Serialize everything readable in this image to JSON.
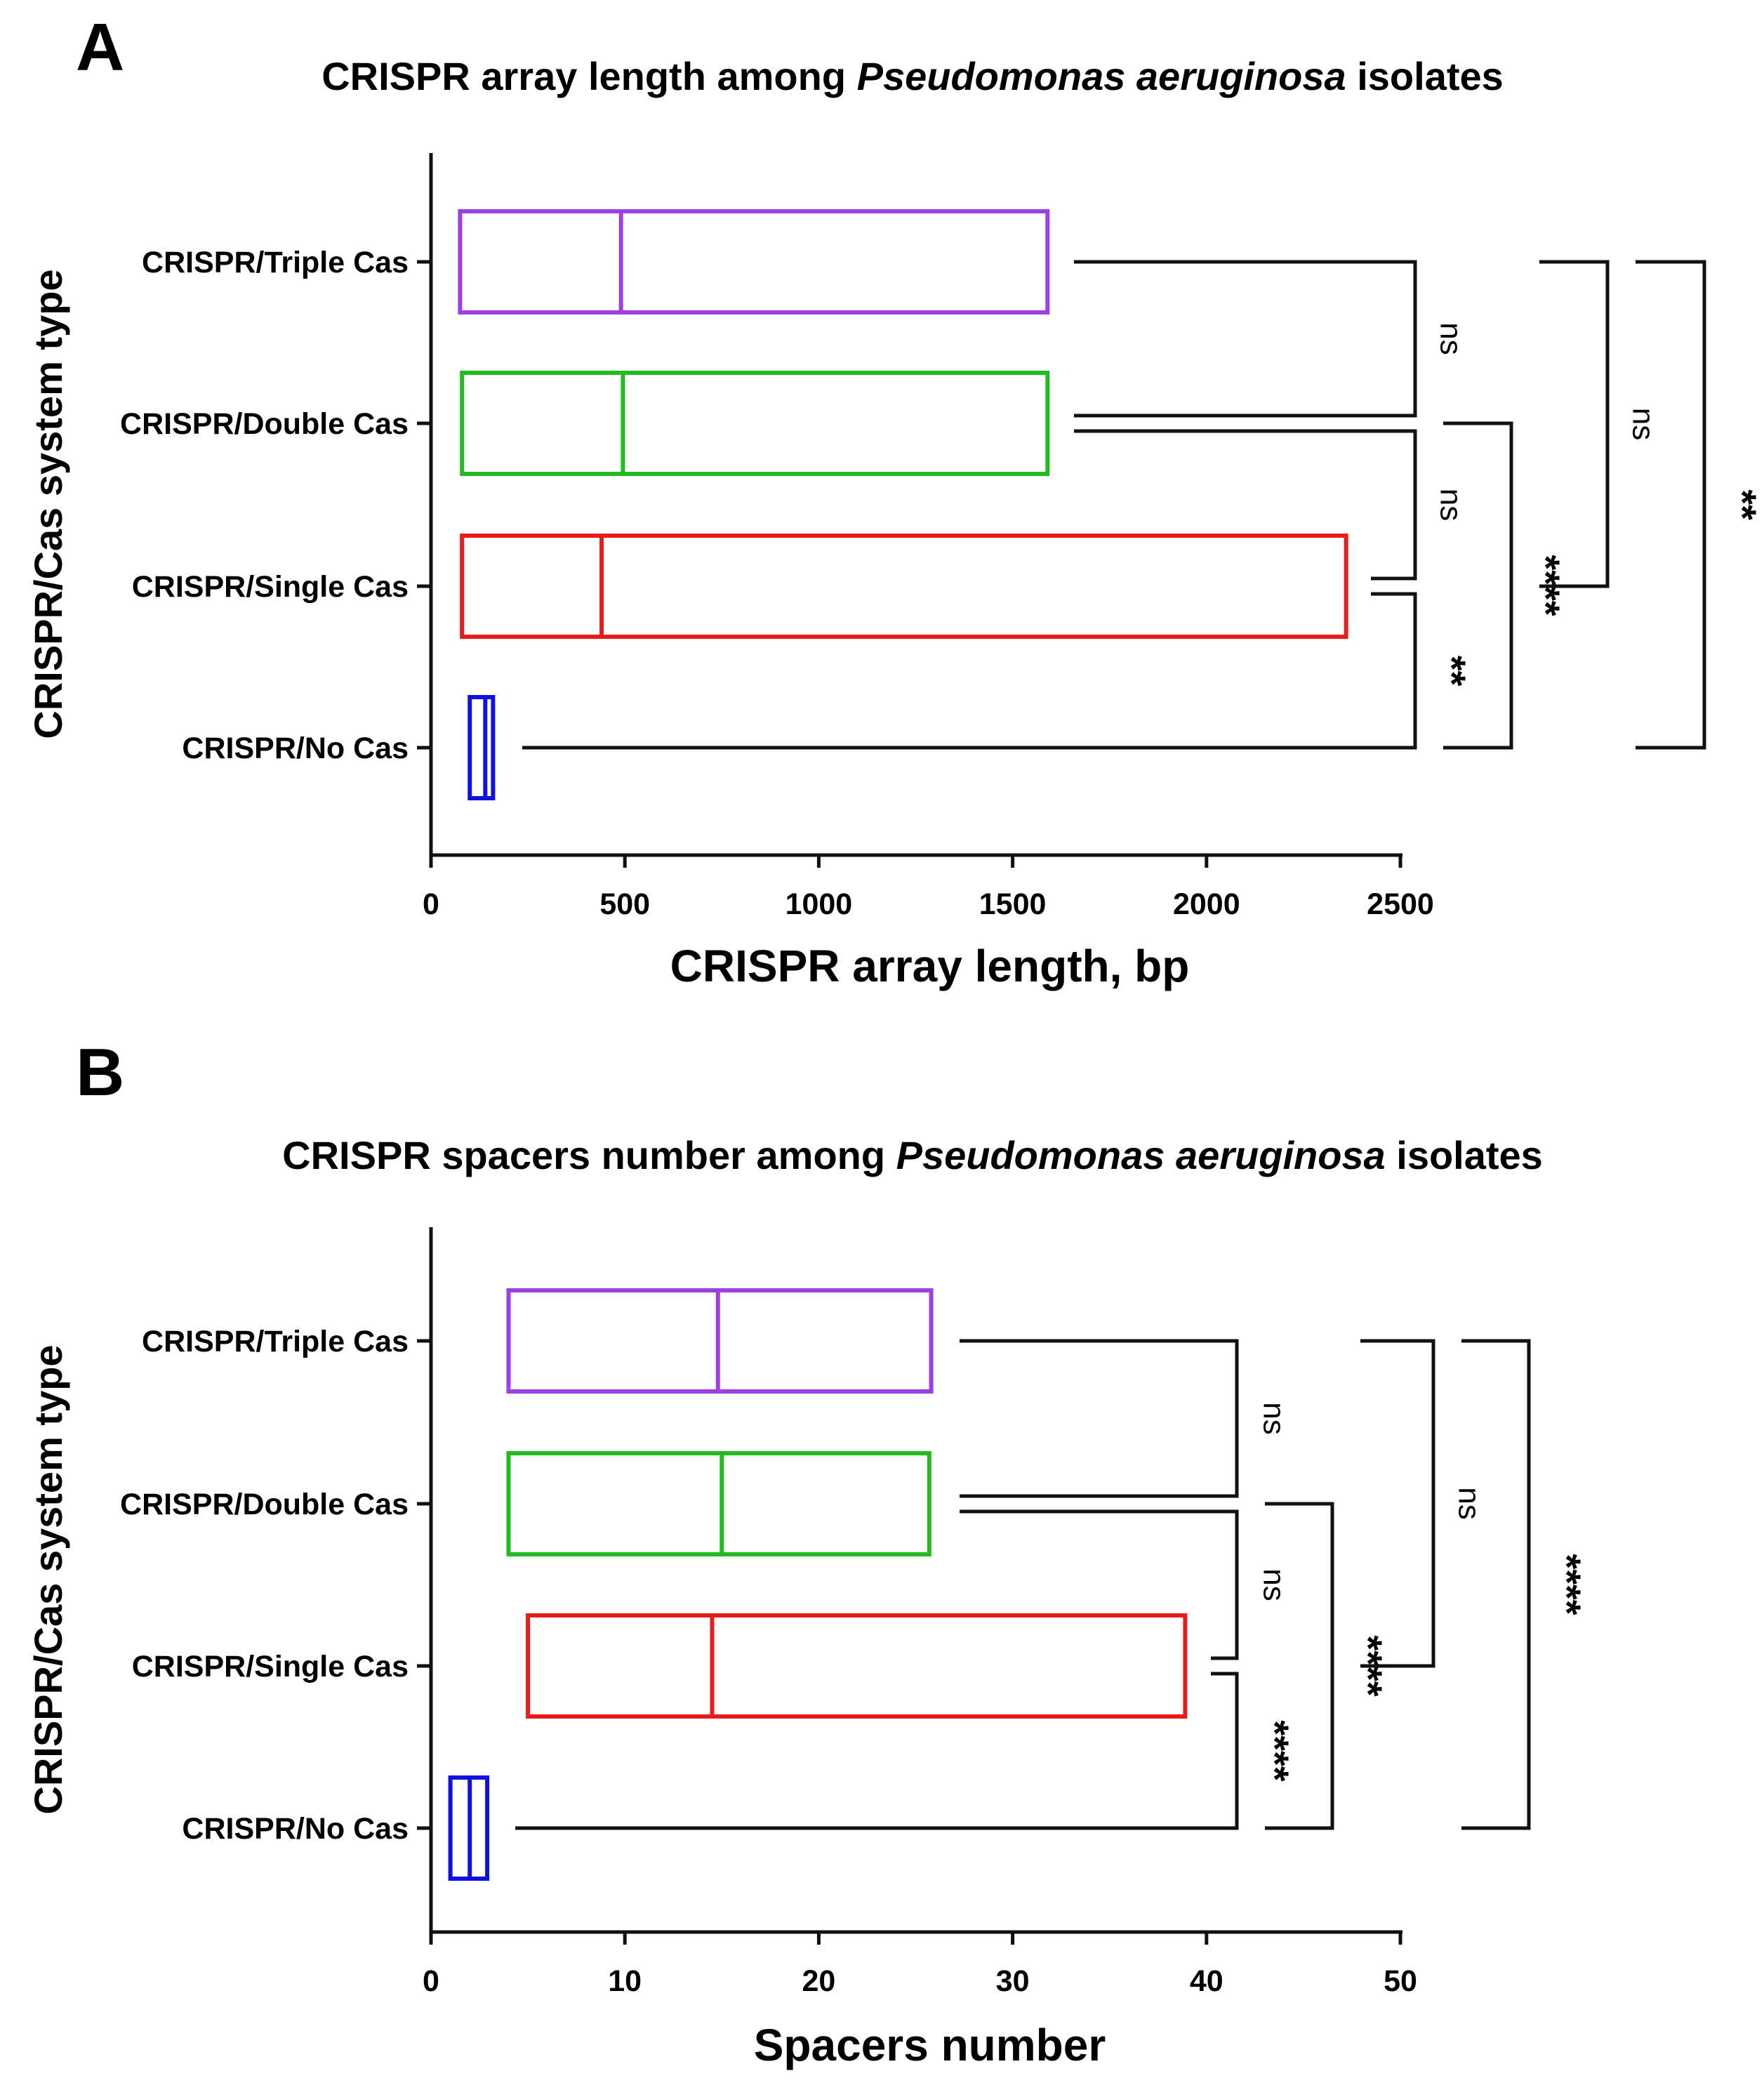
{
  "chart_data": [
    {
      "panel": "A",
      "type": "box",
      "title_parts": [
        {
          "text": "CRISPR array length among ",
          "italic": false
        },
        {
          "text": "Pseudomonas aeruginosa",
          "italic": true
        },
        {
          "text": " isolates",
          "italic": false
        }
      ],
      "xlabel": "CRISPR array length, bp",
      "ylabel": "CRISPR/Cas system type",
      "xlim": [
        0,
        2500
      ],
      "xticks": [
        0,
        500,
        1000,
        1500,
        2000,
        2500
      ],
      "categories": [
        "CRISPR/Triple Cas",
        "CRISPR/Double Cas",
        "CRISPR/Single Cas",
        "CRISPR/No Cas"
      ],
      "colors": [
        "#a03fe0",
        "#22bb22",
        "#e81c1c",
        "#1010e0"
      ],
      "boxes": [
        {
          "min": 75,
          "median": 490,
          "max": 1590
        },
        {
          "min": 80,
          "median": 495,
          "max": 1590
        },
        {
          "min": 80,
          "median": 440,
          "max": 2360
        },
        {
          "min": 100,
          "median": 140,
          "max": 160
        }
      ],
      "comparisons": [
        {
          "from": 0,
          "to": 1,
          "label": "ns",
          "level": 0
        },
        {
          "from": 1,
          "to": 2,
          "label": "ns",
          "level": 0
        },
        {
          "from": 2,
          "to": 3,
          "label": "**",
          "level": 0
        },
        {
          "from": 1,
          "to": 3,
          "label": "****",
          "level": 1
        },
        {
          "from": 0,
          "to": 2,
          "label": "ns",
          "level": 2
        },
        {
          "from": 0,
          "to": 3,
          "label": "**",
          "level": 3
        }
      ]
    },
    {
      "panel": "B",
      "type": "box",
      "title_parts": [
        {
          "text": "CRISPR spacers number among ",
          "italic": false
        },
        {
          "text": "Pseudomonas aeruginosa",
          "italic": true
        },
        {
          "text": " isolates",
          "italic": false
        }
      ],
      "xlabel": "Spacers number",
      "ylabel": "CRISPR/Cas system type",
      "xlim": [
        0,
        50
      ],
      "xticks": [
        0,
        10,
        20,
        30,
        40,
        50
      ],
      "categories": [
        "CRISPR/Triple Cas",
        "CRISPR/Double Cas",
        "CRISPR/Single Cas",
        "CRISPR/No Cas"
      ],
      "colors": [
        "#a03fe0",
        "#22bb22",
        "#e81c1c",
        "#1010e0"
      ],
      "boxes": [
        {
          "min": 4,
          "median": 14.8,
          "max": 25.8
        },
        {
          "min": 4,
          "median": 15,
          "max": 25.7
        },
        {
          "min": 5,
          "median": 14.5,
          "max": 38.9
        },
        {
          "min": 1,
          "median": 2,
          "max": 2.9
        }
      ],
      "comparisons": [
        {
          "from": 0,
          "to": 1,
          "label": "ns",
          "level": 0
        },
        {
          "from": 1,
          "to": 2,
          "label": "ns",
          "level": 0
        },
        {
          "from": 2,
          "to": 3,
          "label": "****",
          "level": 0
        },
        {
          "from": 1,
          "to": 3,
          "label": "****",
          "level": 1
        },
        {
          "from": 0,
          "to": 2,
          "label": "ns",
          "level": 2
        },
        {
          "from": 0,
          "to": 3,
          "label": "****",
          "level": 3
        }
      ]
    }
  ]
}
